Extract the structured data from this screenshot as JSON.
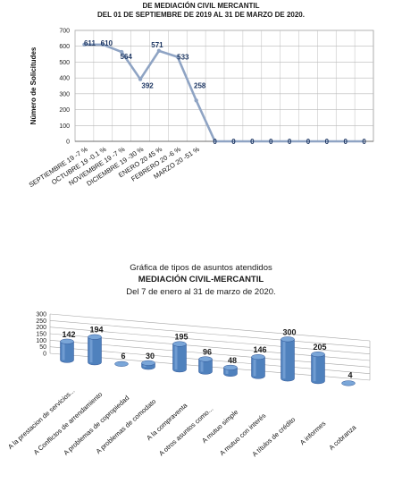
{
  "chart_data": [
    {
      "type": "line",
      "title_lines": [
        "DE MEDIACIÓN CIVIL MERCANTIL",
        "DEL 01 DE SEPTIEMBRE DE 2019 AL 31 DE MARZO DE 2020."
      ],
      "ylabel": "Número de Solicitudes",
      "ylim": [
        0,
        700
      ],
      "yticks": [
        0,
        100,
        200,
        300,
        400,
        500,
        600,
        700
      ],
      "grid": true,
      "categories": [
        "SEPTIEMBRE 19 -7 %",
        "OCTUBRE 19 -0.1 %",
        "NOVIEMBRE 19 -7 %",
        "DICIEMBRE 19 -30 %",
        "ENERO 20 45 %",
        "FEBRERO 20 -6 %",
        "MARZO 20 -51 %",
        "",
        "",
        "",
        "",
        "",
        "",
        "",
        "",
        ""
      ],
      "values": [
        611,
        610,
        564,
        392,
        571,
        533,
        258,
        0,
        0,
        0,
        0,
        0,
        0,
        0,
        0,
        0
      ],
      "line_color": "#8fa4c4",
      "label_color": "#1f3864"
    },
    {
      "type": "bar",
      "title_lines": [
        "Gráfica de tipos de asuntos atendidos",
        "MEDIACIÓN CIVIL-MERCANTIL",
        "Del 7 de enero al 31 de marzo de 2020."
      ],
      "ylim": [
        0,
        300
      ],
      "yticks": [
        0,
        50,
        100,
        150,
        200,
        250,
        300
      ],
      "categories": [
        "A la prestacion de servicios...",
        "A Conflictos de arrendamiento",
        "A problemas de copropiedad",
        "A problemas de comodato",
        "A la compraventa",
        "A otros asuntos como...",
        "A mutuo simple",
        "A mutuo con interés",
        "A títulos de crédito",
        "A informes",
        "A cobranza"
      ],
      "values": [
        142,
        194,
        6,
        30,
        195,
        96,
        48,
        146,
        300,
        205,
        4
      ],
      "bar_color": "#4f81bd"
    }
  ]
}
